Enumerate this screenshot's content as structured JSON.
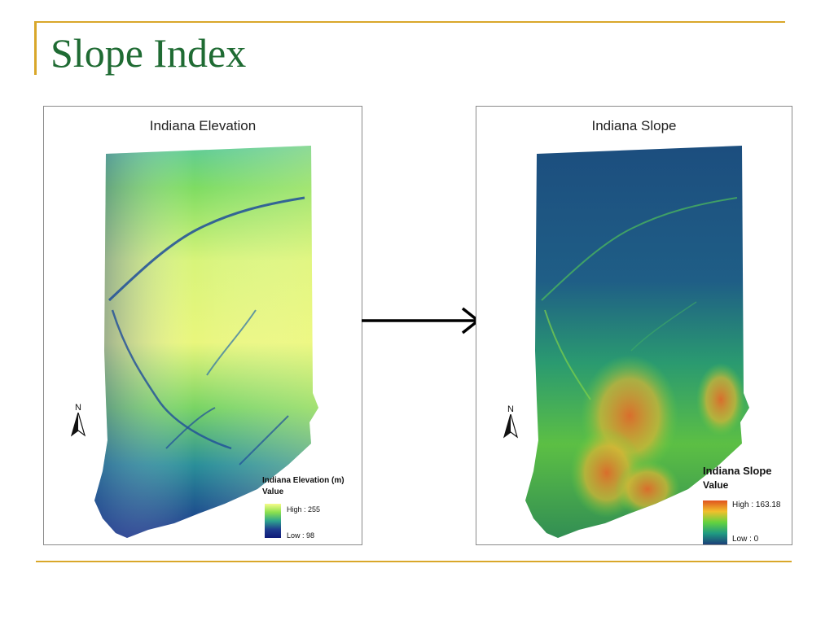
{
  "slide": {
    "title": "Slope Index"
  },
  "maps": {
    "elevation": {
      "title": "Indiana Elevation",
      "north_label": "N",
      "legend": {
        "title": "Indiana Elevation (m)",
        "subtitle": "Value",
        "high_label": "High : 255",
        "low_label": "Low : 98",
        "ramp_colors": [
          "#f6fb8a",
          "#8be04e",
          "#2ea58e",
          "#1f3d8f",
          "#101b7a"
        ]
      }
    },
    "slope": {
      "title": "Indiana Slope",
      "north_label": "N",
      "legend": {
        "title": "Indiana Slope",
        "subtitle": "Value",
        "high_label": "High : 163.18",
        "low_label": "Low : 0",
        "ramp_colors": [
          "#e0531e",
          "#f1c02c",
          "#63d23f",
          "#1f9a82",
          "#1c3f78"
        ]
      }
    }
  },
  "accent_color": "#d9a72a",
  "title_color": "#1f6b33"
}
